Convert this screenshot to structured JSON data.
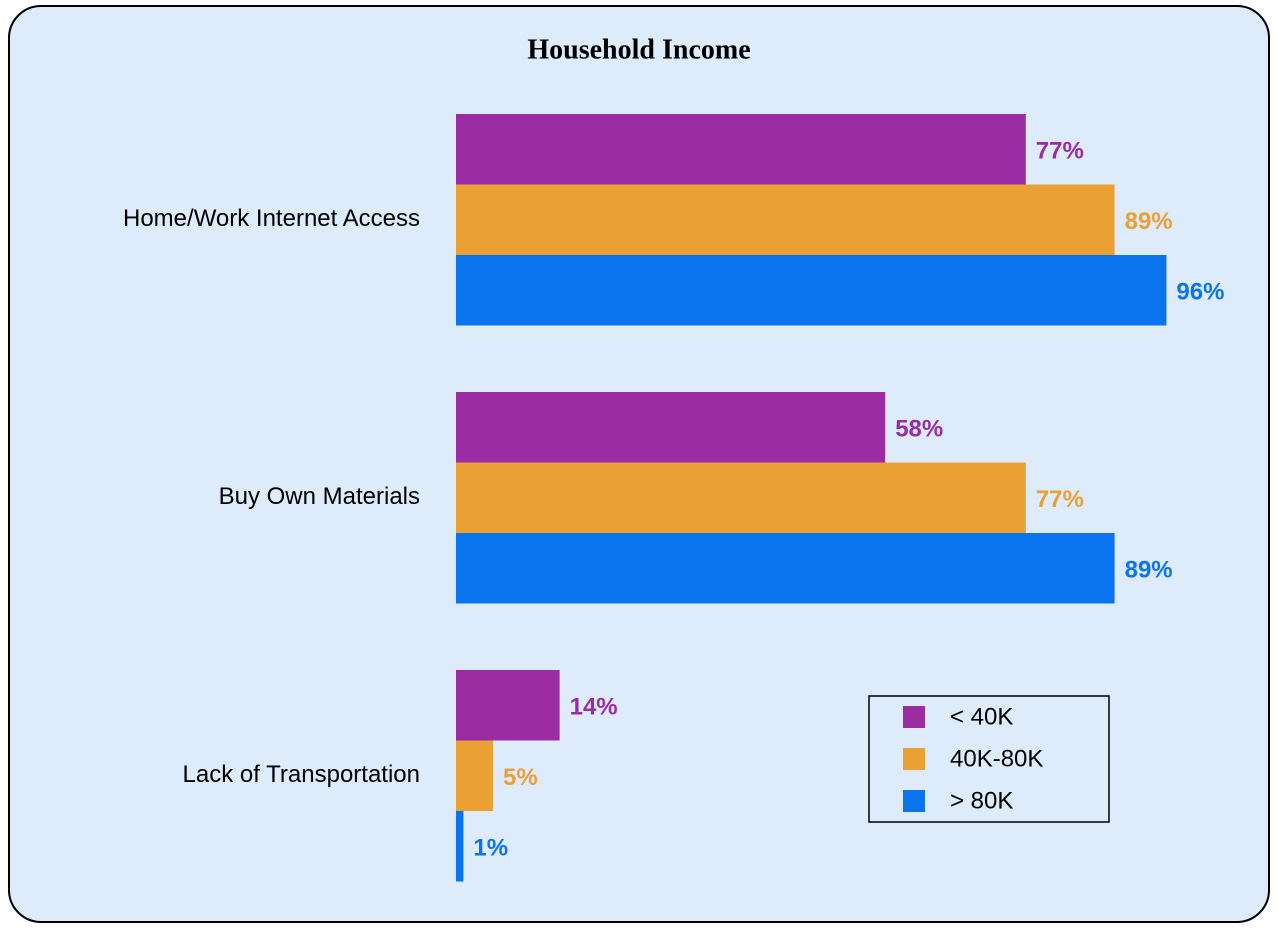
{
  "chart_data": {
    "type": "hbar",
    "title": "Household Income",
    "categories": [
      "Home/Work Internet Access",
      "Buy Own Materials",
      "Lack of Transportation"
    ],
    "series": [
      {
        "name": "< 40K",
        "color": "#9b2ca3",
        "values": [
          77,
          58,
          14
        ],
        "value_labels": [
          "77%",
          "58%",
          "14%"
        ]
      },
      {
        "name": "40K-80K",
        "color": "#eba034",
        "values": [
          89,
          77,
          5
        ],
        "value_labels": [
          "89%",
          "77%",
          "5%"
        ]
      },
      {
        "name": "> 80K",
        "color": "#0a74ee",
        "values": [
          96,
          89,
          1
        ],
        "value_labels": [
          "96%",
          "89%",
          "1%"
        ]
      }
    ],
    "xlim": [
      0,
      100
    ]
  }
}
